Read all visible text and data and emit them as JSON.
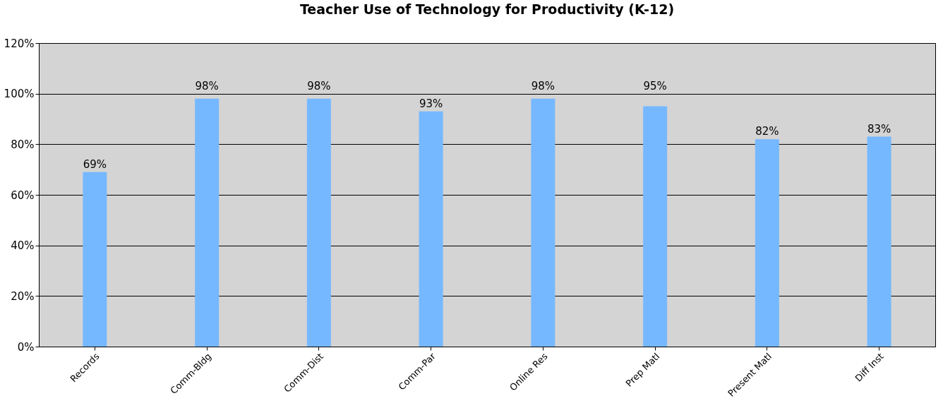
{
  "chart_data": {
    "type": "bar",
    "title": "Teacher Use of Technology for Productivity (K-12)",
    "categories": [
      "Records",
      "Comm-Bldg",
      "Comm-Dist",
      "Comm-Par",
      "Online Res",
      "Prep Matl",
      "Present Matl",
      "Diff Inst"
    ],
    "values": [
      69,
      98,
      98,
      93,
      98,
      95,
      82,
      83
    ],
    "value_labels": [
      "69%",
      "98%",
      "98%",
      "93%",
      "98%",
      "95%",
      "82%",
      "83%"
    ],
    "color": "#76b8ff",
    "ylim": [
      0,
      120
    ],
    "yticks": [
      {
        "value": 0,
        "label": "0%"
      },
      {
        "value": 20,
        "label": "20%"
      },
      {
        "value": 40,
        "label": "40%"
      },
      {
        "value": 60,
        "label": "60%"
      },
      {
        "value": 80,
        "label": "80%"
      },
      {
        "value": 100,
        "label": "100%"
      },
      {
        "value": 120,
        "label": "120%"
      }
    ],
    "grid": "y"
  }
}
